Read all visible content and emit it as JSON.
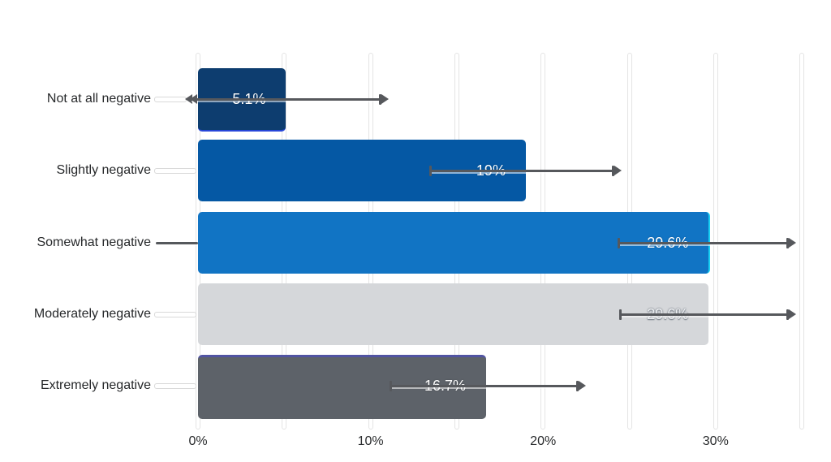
{
  "chart_data": {
    "type": "bar",
    "orientation": "horizontal",
    "title": "",
    "xlabel": "",
    "ylabel": "",
    "categories": [
      "Not at all negative",
      "Slightly negative",
      "Somewhat negative",
      "Moderately negative",
      "Extremely negative"
    ],
    "values": [
      5.1,
      19,
      29.6,
      29.6,
      16.7
    ],
    "value_labels": [
      "5.1%",
      "19%",
      "29.6%",
      "29.6%",
      "16.7%"
    ],
    "error_bars_pct": [
      [
        0,
        10.6
      ],
      [
        13.4,
        24.1
      ],
      [
        24.3,
        34.2
      ],
      [
        24.4,
        34.2
      ],
      [
        11.1,
        22.0
      ]
    ],
    "bar_colors": [
      "#0d3d6f",
      "#0558a4",
      "#1174c4",
      "#d5d7da",
      "#5d6269"
    ],
    "value_label_styles": [
      "light",
      "light",
      "light",
      "outlined",
      "light"
    ],
    "bar_accent_edges": [
      {
        "edge": "bottom",
        "color": "#2746d8"
      },
      null,
      {
        "edge": "right",
        "color": "#18cff2"
      },
      null,
      {
        "edge": "top",
        "color": "#5154a2"
      }
    ],
    "leader_line_styles": [
      "white-arrow",
      "white",
      "dark",
      "white",
      "white"
    ],
    "xlim": [
      0,
      35
    ],
    "x_grid_pct": [
      0,
      5,
      10,
      15,
      20,
      25,
      30,
      35
    ],
    "x_ticks": [
      {
        "pct": 0,
        "label": "0%"
      },
      {
        "pct": 10,
        "label": "10%"
      },
      {
        "pct": 20,
        "label": "20%"
      },
      {
        "pct": 30,
        "label": "30%"
      }
    ],
    "grid_on": true,
    "grid_color": "#ffffff",
    "error_bar_color": "#56585c",
    "legend": null
  }
}
